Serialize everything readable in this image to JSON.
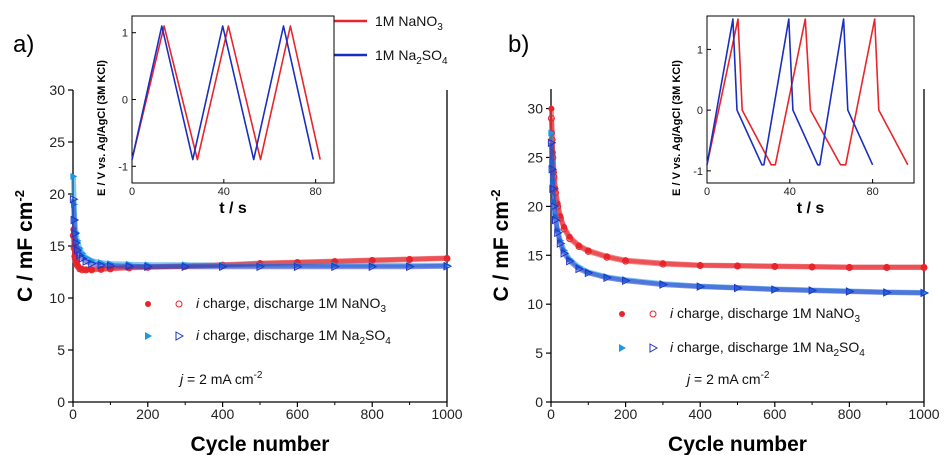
{
  "legend_top": [
    {
      "text": "1M NaNO",
      "sub": "3",
      "color": "#e8252b"
    },
    {
      "text": "1M Na",
      "sub": "2",
      "tail": "SO",
      "sub2": "4",
      "color": "#1a2fbf"
    }
  ],
  "chart_data": [
    {
      "type": "scatter",
      "panel_label": "a)",
      "xlabel": "Cycle number",
      "ylabel_main": "C / mF cm",
      "ylabel_sup": "-2",
      "xlim": [
        0,
        1000
      ],
      "ylim": [
        0,
        30
      ],
      "xticks": [
        0,
        200,
        400,
        600,
        800,
        1000
      ],
      "yticks": [
        0,
        5,
        10,
        15,
        20,
        25,
        30
      ],
      "annotation": {
        "prefix": "j",
        "text": " = 2 mA cm",
        "sup": "-2"
      },
      "legend": [
        {
          "italic": "i",
          "text": " charge, discharge 1M NaNO",
          "sub": "3",
          "filled_color": "#e8252b",
          "open_color": "#e8252b"
        },
        {
          "italic": "i",
          "text": " charge, discharge 1M Na",
          "sub": "2",
          "tail": "SO",
          "sub2": "4",
          "filled_color": "#1a9ae6",
          "open_color": "#2035c8"
        }
      ],
      "series": [
        {
          "name": "i charge 1M NaNO3",
          "color": "#e8252b",
          "marker": "filled-circle",
          "x": [
            1,
            3,
            5,
            8,
            12,
            18,
            25,
            35,
            50,
            75,
            100,
            150,
            200,
            300,
            400,
            500,
            600,
            700,
            800,
            900,
            1000
          ],
          "y": [
            16.6,
            15.0,
            14.2,
            13.6,
            13.2,
            12.9,
            12.8,
            12.75,
            12.75,
            12.8,
            12.85,
            12.95,
            13.0,
            13.1,
            13.2,
            13.35,
            13.45,
            13.55,
            13.65,
            13.75,
            13.85
          ]
        },
        {
          "name": "i discharge 1M NaNO3",
          "color": "#e8252b",
          "marker": "open-circle",
          "x": [
            1,
            3,
            5,
            8,
            12,
            18,
            25,
            35,
            50,
            75,
            100,
            150,
            200,
            300,
            400,
            500,
            600,
            700,
            800,
            900,
            1000
          ],
          "y": [
            16.0,
            14.8,
            14.0,
            13.5,
            13.1,
            12.8,
            12.7,
            12.7,
            12.7,
            12.75,
            12.8,
            12.9,
            12.95,
            13.05,
            13.15,
            13.3,
            13.4,
            13.5,
            13.6,
            13.7,
            13.8
          ]
        },
        {
          "name": "i charge 1M Na2SO4",
          "color": "#1a9ae6",
          "marker": "filled-triangle",
          "x": [
            1,
            3,
            5,
            8,
            12,
            18,
            25,
            35,
            50,
            75,
            100,
            150,
            200,
            300,
            400,
            500,
            600,
            700,
            800,
            900,
            1000
          ],
          "y": [
            21.7,
            19.0,
            17.5,
            16.3,
            15.5,
            14.8,
            14.3,
            13.9,
            13.6,
            13.4,
            13.3,
            13.25,
            13.2,
            13.2,
            13.15,
            13.15,
            13.15,
            13.15,
            13.15,
            13.15,
            13.15
          ]
        },
        {
          "name": "i discharge 1M Na2SO4",
          "color": "#2035c8",
          "marker": "open-triangle",
          "x": [
            1,
            3,
            5,
            8,
            12,
            18,
            25,
            35,
            50,
            75,
            100,
            150,
            200,
            300,
            400,
            500,
            600,
            700,
            800,
            900,
            1000
          ],
          "y": [
            19.5,
            17.5,
            16.2,
            15.3,
            14.6,
            14.1,
            13.8,
            13.5,
            13.3,
            13.15,
            13.1,
            13.05,
            13.0,
            13.0,
            13.0,
            13.0,
            13.0,
            13.0,
            13.0,
            13.0,
            13.05
          ]
        }
      ],
      "inset": {
        "type": "line",
        "xlabel": "t / s",
        "ylabel": "E / V vs. Ag/AgCl (3M KCl)",
        "xlim": [
          0,
          88
        ],
        "ylim": [
          -1.25,
          1.25
        ],
        "xticks": [
          0,
          40,
          80
        ],
        "yticks": [
          -1,
          0,
          1
        ],
        "series": [
          {
            "name": "1M NaNO3",
            "color": "#e8252b",
            "x": [
              0,
              14,
              28.5,
              42,
              56,
              69,
              82
            ],
            "y": [
              -0.9,
              1.1,
              -0.9,
              1.1,
              -0.9,
              1.1,
              -0.9
            ]
          },
          {
            "name": "1M Na2SO4",
            "color": "#1a2fbf",
            "x": [
              0,
              13,
              26.5,
              39.5,
              53,
              66,
              79
            ],
            "y": [
              -0.9,
              1.1,
              -0.9,
              1.1,
              -0.9,
              1.1,
              -0.9
            ]
          }
        ]
      }
    },
    {
      "type": "scatter",
      "panel_label": "b)",
      "xlabel": "Cycle number",
      "ylabel_main": "C / mF cm",
      "ylabel_sup": "-2",
      "xlim": [
        0,
        1000
      ],
      "ylim": [
        0,
        32
      ],
      "xticks": [
        0,
        200,
        400,
        600,
        800,
        1000
      ],
      "yticks": [
        0,
        5,
        10,
        15,
        20,
        25,
        30
      ],
      "annotation": {
        "prefix": "j",
        "text": " = 2 mA cm",
        "sup": "-2"
      },
      "legend": [
        {
          "italic": "i",
          "text": " charge, discharge 1M NaNO",
          "sub": "3",
          "filled_color": "#e8252b",
          "open_color": "#e8252b"
        },
        {
          "italic": "i",
          "text": " charge, discharge 1M Na",
          "sub": "2",
          "tail": "SO",
          "sub2": "4",
          "filled_color": "#1a9ae6",
          "open_color": "#2035c8"
        }
      ],
      "series": [
        {
          "name": "i charge 1M NaNO3",
          "color": "#e8252b",
          "marker": "filled-circle",
          "x": [
            1,
            3,
            5,
            8,
            12,
            18,
            25,
            35,
            50,
            75,
            100,
            150,
            200,
            300,
            400,
            500,
            600,
            700,
            800,
            900,
            1000
          ],
          "y": [
            30.0,
            27.5,
            25.5,
            23.5,
            21.8,
            20.3,
            19.0,
            17.9,
            16.9,
            16.0,
            15.5,
            14.9,
            14.5,
            14.2,
            14.0,
            13.95,
            13.9,
            13.85,
            13.8,
            13.8,
            13.8
          ]
        },
        {
          "name": "i discharge 1M NaNO3",
          "color": "#e8252b",
          "marker": "open-circle",
          "x": [
            1,
            3,
            5,
            8,
            12,
            18,
            25,
            35,
            50,
            75,
            100,
            150,
            200,
            300,
            400,
            500,
            600,
            700,
            800,
            900,
            1000
          ],
          "y": [
            29.0,
            26.8,
            25.0,
            23.0,
            21.4,
            20.0,
            18.8,
            17.7,
            16.7,
            15.9,
            15.4,
            14.8,
            14.4,
            14.1,
            13.95,
            13.9,
            13.85,
            13.8,
            13.75,
            13.75,
            13.75
          ]
        },
        {
          "name": "i charge 1M Na2SO4",
          "color": "#1a9ae6",
          "marker": "filled-triangle",
          "x": [
            1,
            3,
            5,
            8,
            12,
            18,
            25,
            35,
            50,
            75,
            100,
            150,
            200,
            300,
            400,
            500,
            600,
            700,
            800,
            900,
            1000
          ],
          "y": [
            27.5,
            24.5,
            22.5,
            20.5,
            19.0,
            17.6,
            16.5,
            15.5,
            14.6,
            13.8,
            13.3,
            12.8,
            12.5,
            12.1,
            11.85,
            11.7,
            11.55,
            11.45,
            11.35,
            11.25,
            11.2
          ]
        },
        {
          "name": "i discharge 1M Na2SO4",
          "color": "#2035c8",
          "marker": "open-triangle",
          "x": [
            1,
            3,
            5,
            8,
            12,
            18,
            25,
            35,
            50,
            75,
            100,
            150,
            200,
            300,
            400,
            500,
            600,
            700,
            800,
            900,
            1000
          ],
          "y": [
            26.5,
            23.8,
            21.8,
            20.0,
            18.6,
            17.3,
            16.2,
            15.2,
            14.4,
            13.6,
            13.2,
            12.7,
            12.4,
            12.0,
            11.8,
            11.65,
            11.5,
            11.4,
            11.3,
            11.2,
            11.15
          ]
        }
      ],
      "inset": {
        "type": "line",
        "xlabel": "t / s",
        "ylabel": "E / V vs. Ag/AgCl (3M KCl)",
        "xlim": [
          0,
          100
        ],
        "ylim": [
          -1.2,
          1.55
        ],
        "xticks": [
          0,
          40,
          80
        ],
        "yticks": [
          -1,
          0,
          1
        ],
        "series": [
          {
            "name": "1M NaNO3",
            "color": "#e8252b",
            "x": [
              0,
              15,
              17,
              31,
              33,
              47.5,
              50,
              64.5,
              67,
              81,
              83,
              97
            ],
            "y": [
              -0.9,
              1.5,
              0.0,
              -0.9,
              -0.9,
              1.5,
              0.0,
              -0.9,
              -0.9,
              1.5,
              0.0,
              -0.9
            ]
          },
          {
            "name": "1M Na2SO4",
            "color": "#1a2fbf",
            "x": [
              0,
              12.5,
              14.5,
              26.5,
              27.5,
              39.5,
              41.5,
              53.5,
              54.5,
              66,
              68,
              80
            ],
            "y": [
              -0.9,
              1.5,
              0.0,
              -0.9,
              -0.9,
              1.5,
              0.0,
              -0.9,
              -0.9,
              1.5,
              0.0,
              -0.9
            ]
          }
        ]
      }
    }
  ]
}
